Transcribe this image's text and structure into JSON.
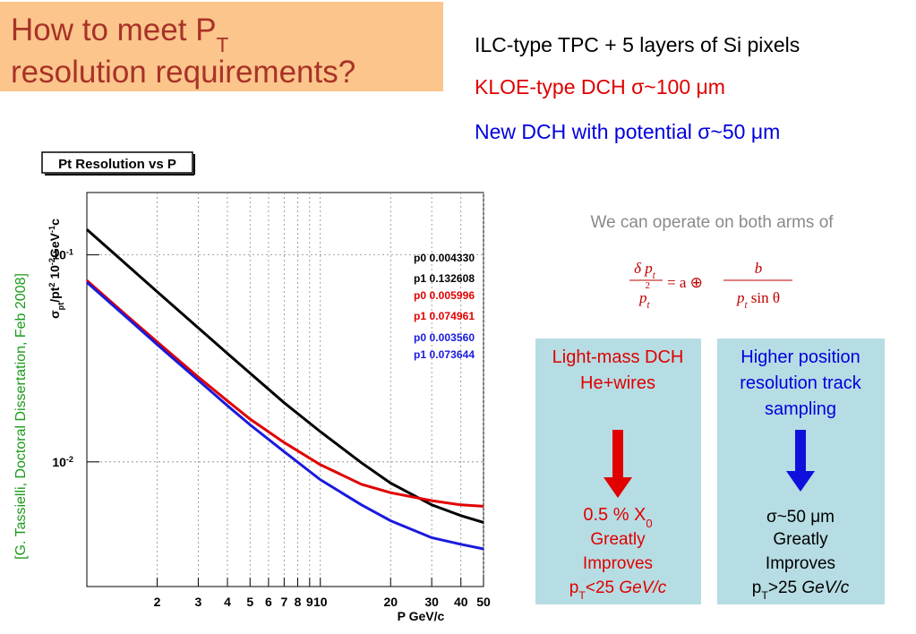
{
  "title": {
    "text": "How to meet P",
    "sub": "T",
    "line2": "resolution requirements?"
  },
  "lines": [
    {
      "text": "ILC-type TPC + 5 layers of Si pixels",
      "color": "#000000"
    },
    {
      "text": "KLOE-type DCH σ~100 μm",
      "color": "#e00000"
    },
    {
      "text": "New DCH with potential σ~50 μm",
      "color": "#0000dd"
    }
  ],
  "citation": "[G. Tassielli, Doctoral Dissertation, Feb 2008]",
  "note": "We can operate on both arms of",
  "formula": {
    "lhs_num": "δ p",
    "lhs_num_sub": "t",
    "lhs_den": "p",
    "lhs_den_sub": "t",
    "lhs_den_sup": "2",
    "mid": "= a ⊕",
    "rhs_num": "b",
    "rhs_den": "p",
    "rhs_den_sub": "t",
    "rhs_den_tail": " sin θ"
  },
  "boxes": [
    {
      "heading": [
        "Light-mass DCH",
        "He+wires"
      ],
      "result": "0.5 % X",
      "result_sub": "0",
      "lines": [
        "Greatly",
        "Improves"
      ],
      "cond": "p",
      "cond_sub": "T",
      "cond_rest": "<25 ",
      "cond_unit": "GeV/c"
    },
    {
      "heading": [
        "Higher position",
        "resolution track",
        "sampling"
      ],
      "result": "σ~50 μm",
      "lines": [
        "Greatly",
        "Improves"
      ],
      "cond": "p",
      "cond_sub": "T",
      "cond_rest": ">25 ",
      "cond_unit": "GeV/c"
    }
  ],
  "chart_data": {
    "type": "line",
    "title": "Pt Resolution vs P",
    "ylabel": [
      {
        "t": "σ"
      },
      {
        "t": "pt",
        "s": "sub"
      },
      {
        "t": "/pt"
      },
      {
        "t": "2",
        "s": "sup"
      },
      {
        "t": "  10"
      },
      {
        "t": "-2",
        "s": "sup"
      },
      {
        "t": "GeV"
      },
      {
        "t": "-1",
        "s": "sup"
      },
      {
        "t": "c"
      }
    ],
    "xlabel": "P  GeV/c",
    "log_x": true,
    "log_y": true,
    "grid": true,
    "xlim": [
      1,
      50
    ],
    "ylim": [
      0.0025,
      0.2
    ],
    "xticks": [
      2,
      3,
      4,
      5,
      6,
      7,
      8,
      9,
      10,
      20,
      30,
      40,
      50
    ],
    "yticks": [
      {
        "value": 0.1,
        "label": "10",
        "exponent": "-1"
      },
      {
        "value": 0.01,
        "label": "10",
        "exponent": "-2"
      }
    ],
    "x": [
      1,
      1.5,
      2,
      3,
      4,
      5,
      7,
      10,
      15,
      20,
      30,
      40,
      50
    ],
    "series": [
      {
        "color": "#000000",
        "fit": [
          "p0 0.004330",
          "p1 0.132608"
        ],
        "values": [
          0.1327,
          0.0885,
          0.0664,
          0.0444,
          0.0334,
          0.0268,
          0.0193,
          0.014,
          0.0099,
          0.0079,
          0.0062,
          0.0055,
          0.0051
        ]
      },
      {
        "color": "#e00000",
        "fit": [
          "p0 0.005996",
          "p1 0.074961"
        ],
        "values": [
          0.0752,
          0.0503,
          0.038,
          0.0257,
          0.0197,
          0.0161,
          0.0124,
          0.0097,
          0.0078,
          0.0071,
          0.0065,
          0.0062,
          0.0061
        ]
      },
      {
        "color": "#1a1add",
        "fit": [
          "p0 0.003560",
          "p1 0.073644"
        ],
        "values": [
          0.0737,
          0.0492,
          0.0369,
          0.0248,
          0.0187,
          0.0151,
          0.0112,
          0.0082,
          0.0062,
          0.0052,
          0.0043,
          0.004,
          0.0038
        ]
      }
    ]
  }
}
